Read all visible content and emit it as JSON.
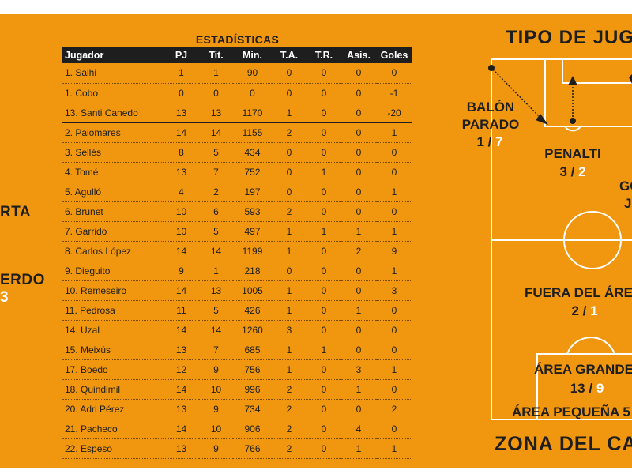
{
  "left_labels": {
    "label1": "RTA",
    "label2": "ERDO",
    "num2": "3"
  },
  "stats": {
    "title": "ESTADÍSTICAS",
    "headers": [
      "Jugador",
      "PJ",
      "Tit.",
      "Min.",
      "T.A.",
      "T.R.",
      "Asis.",
      "Goles"
    ],
    "rows": [
      [
        "1. Salhi",
        "1",
        "1",
        "90",
        "0",
        "0",
        "0",
        "0"
      ],
      [
        "1. Cobo",
        "0",
        "0",
        "0",
        "0",
        "0",
        "0",
        "-1"
      ],
      [
        "13. Santi Canedo",
        "13",
        "13",
        "1170",
        "1",
        "0",
        "0",
        "-20"
      ],
      [
        "2. Palomares",
        "14",
        "14",
        "1155",
        "2",
        "0",
        "0",
        "1"
      ],
      [
        "3. Sellés",
        "8",
        "5",
        "434",
        "0",
        "0",
        "0",
        "0"
      ],
      [
        "4. Tomé",
        "13",
        "7",
        "752",
        "0",
        "1",
        "0",
        "0"
      ],
      [
        "5. Agulló",
        "4",
        "2",
        "197",
        "0",
        "0",
        "0",
        "1"
      ],
      [
        "6. Brunet",
        "10",
        "6",
        "593",
        "2",
        "0",
        "0",
        "0"
      ],
      [
        "7. Garrido",
        "10",
        "5",
        "497",
        "1",
        "1",
        "1",
        "1"
      ],
      [
        "8. Carlos López",
        "14",
        "14",
        "1199",
        "1",
        "0",
        "2",
        "9"
      ],
      [
        "9. Dieguito",
        "9",
        "1",
        "218",
        "0",
        "0",
        "0",
        "1"
      ],
      [
        "10. Remeseiro",
        "14",
        "13",
        "1005",
        "1",
        "0",
        "0",
        "3"
      ],
      [
        "11. Pedrosa",
        "11",
        "5",
        "426",
        "1",
        "0",
        "1",
        "0"
      ],
      [
        "14. Uzal",
        "14",
        "14",
        "1260",
        "3",
        "0",
        "0",
        "0"
      ],
      [
        "15. Meixús",
        "13",
        "7",
        "685",
        "1",
        "1",
        "0",
        "0"
      ],
      [
        "17. Boedo",
        "12",
        "9",
        "756",
        "1",
        "0",
        "3",
        "1"
      ],
      [
        "18. Quindimil",
        "14",
        "10",
        "996",
        "2",
        "0",
        "1",
        "0"
      ],
      [
        "20. Adri Pérez",
        "13",
        "9",
        "734",
        "2",
        "0",
        "0",
        "2"
      ],
      [
        "21. Pacheco",
        "14",
        "10",
        "906",
        "2",
        "0",
        "4",
        "0"
      ],
      [
        "22. Espeso",
        "13",
        "9",
        "766",
        "2",
        "0",
        "1",
        "1"
      ]
    ]
  },
  "field": {
    "title": "TIPO DE JUG",
    "zone_title": "ZONA DEL CA",
    "balon_parado": {
      "label1": "BALÓN",
      "label2": "PARADO",
      "a": "1",
      "sep": " / ",
      "b": "7"
    },
    "penalti": {
      "label": "PENALTI",
      "a": "3",
      "sep": " / ",
      "b": "2"
    },
    "cropped_right": {
      "label1": "GO",
      "label2": "J"
    },
    "fuera_area": {
      "label": "FUERA DEL ÁRE",
      "a": "2",
      "sep": " / ",
      "b": "1"
    },
    "area_grande": {
      "label": "ÁREA GRANDE",
      "a": "13",
      "sep": " / ",
      "b": "9"
    },
    "area_pequena": {
      "label": "ÁREA PEQUEÑA 5"
    }
  },
  "colors": {
    "background": "#f0960f",
    "dark": "#1e1e1e",
    "lines": "#ffffff"
  }
}
